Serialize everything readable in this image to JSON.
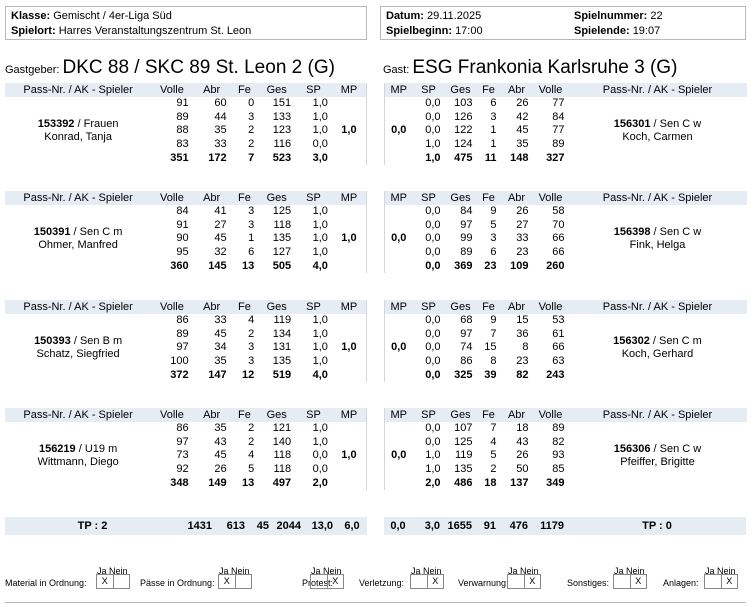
{
  "header": {
    "klasse_label": "Klasse:",
    "klasse": "Gemischt / 4er-Liga Süd",
    "spielort_label": "Spielort:",
    "spielort": "Harres Veranstaltungszentrum St. Leon",
    "datum_label": "Datum:",
    "datum": "29.11.2025",
    "spielnummer_label": "Spielnummer:",
    "spielnummer": "22",
    "spielbeginn_label": "Spielbeginn:",
    "spielbeginn": "17:00",
    "spielende_label": "Spielende:",
    "spielende": "19:07"
  },
  "home": {
    "label": "Gastgeber:",
    "name": "DKC 88 / SKC 89 St. Leon 2 (G)"
  },
  "guest": {
    "label": "Gast:",
    "name": "ESG Frankonia Karlsruhe 3 (G)"
  },
  "columns": {
    "player": "Pass-Nr. / AK - Spieler",
    "volle": "Volle",
    "abr": "Abr",
    "fe": "Fe",
    "ges": "Ges",
    "sp": "SP",
    "mp": "MP"
  },
  "home_players": [
    {
      "pass": "153392",
      "ak": "Frauen",
      "name": "Konrad, Tanja",
      "mp": "1,0",
      "rows": [
        [
          "91",
          "60",
          "0",
          "151",
          "1,0"
        ],
        [
          "89",
          "44",
          "3",
          "133",
          "1,0"
        ],
        [
          "88",
          "35",
          "2",
          "123",
          "1,0"
        ],
        [
          "83",
          "33",
          "2",
          "116",
          "0,0"
        ]
      ],
      "sum": [
        "351",
        "172",
        "7",
        "523",
        "3,0"
      ]
    },
    {
      "pass": "150391",
      "ak": "Sen C m",
      "name": "Ohmer, Manfred",
      "mp": "1,0",
      "rows": [
        [
          "84",
          "41",
          "3",
          "125",
          "1,0"
        ],
        [
          "91",
          "27",
          "3",
          "118",
          "1,0"
        ],
        [
          "90",
          "45",
          "1",
          "135",
          "1,0"
        ],
        [
          "95",
          "32",
          "6",
          "127",
          "1,0"
        ]
      ],
      "sum": [
        "360",
        "145",
        "13",
        "505",
        "4,0"
      ]
    },
    {
      "pass": "150393",
      "ak": "Sen B m",
      "name": "Schatz, Siegfried",
      "mp": "1,0",
      "rows": [
        [
          "86",
          "33",
          "4",
          "119",
          "1,0"
        ],
        [
          "89",
          "45",
          "2",
          "134",
          "1,0"
        ],
        [
          "97",
          "34",
          "3",
          "131",
          "1,0"
        ],
        [
          "100",
          "35",
          "3",
          "135",
          "1,0"
        ]
      ],
      "sum": [
        "372",
        "147",
        "12",
        "519",
        "4,0"
      ]
    },
    {
      "pass": "156219",
      "ak": "U19 m",
      "name": "Wittmann, Diego",
      "mp": "1,0",
      "rows": [
        [
          "86",
          "35",
          "2",
          "121",
          "1,0"
        ],
        [
          "97",
          "43",
          "2",
          "140",
          "1,0"
        ],
        [
          "73",
          "45",
          "4",
          "118",
          "0,0"
        ],
        [
          "92",
          "26",
          "5",
          "118",
          "0,0"
        ]
      ],
      "sum": [
        "348",
        "149",
        "13",
        "497",
        "2,0"
      ]
    }
  ],
  "guest_players": [
    {
      "pass": "156301",
      "ak": "Sen C w",
      "name": "Koch, Carmen",
      "mp": "0,0",
      "rows": [
        [
          "0,0",
          "103",
          "6",
          "26",
          "77"
        ],
        [
          "0,0",
          "126",
          "3",
          "42",
          "84"
        ],
        [
          "0,0",
          "122",
          "1",
          "45",
          "77"
        ],
        [
          "1,0",
          "124",
          "1",
          "35",
          "89"
        ]
      ],
      "sum": [
        "1,0",
        "475",
        "11",
        "148",
        "327"
      ]
    },
    {
      "pass": "156398",
      "ak": "Sen C w",
      "name": "Fink, Helga",
      "mp": "0,0",
      "rows": [
        [
          "0,0",
          "84",
          "9",
          "26",
          "58"
        ],
        [
          "0,0",
          "97",
          "5",
          "27",
          "70"
        ],
        [
          "0,0",
          "99",
          "3",
          "33",
          "66"
        ],
        [
          "0,0",
          "89",
          "6",
          "23",
          "66"
        ]
      ],
      "sum": [
        "0,0",
        "369",
        "23",
        "109",
        "260"
      ]
    },
    {
      "pass": "156302",
      "ak": "Sen C m",
      "name": "Koch, Gerhard",
      "mp": "0,0",
      "rows": [
        [
          "0,0",
          "68",
          "9",
          "15",
          "53"
        ],
        [
          "0,0",
          "97",
          "7",
          "36",
          "61"
        ],
        [
          "0,0",
          "74",
          "15",
          "8",
          "66"
        ],
        [
          "0,0",
          "86",
          "8",
          "23",
          "63"
        ]
      ],
      "sum": [
        "0,0",
        "325",
        "39",
        "82",
        "243"
      ]
    },
    {
      "pass": "156306",
      "ak": "Sen C w",
      "name": "Pfeiffer, Brigitte",
      "mp": "0,0",
      "rows": [
        [
          "0,0",
          "107",
          "7",
          "18",
          "89"
        ],
        [
          "0,0",
          "125",
          "4",
          "43",
          "82"
        ],
        [
          "1,0",
          "119",
          "5",
          "26",
          "93"
        ],
        [
          "1,0",
          "135",
          "2",
          "50",
          "85"
        ]
      ],
      "sum": [
        "2,0",
        "486",
        "18",
        "137",
        "349"
      ]
    }
  ],
  "totals": {
    "home": {
      "tp": "TP : 2",
      "volle": "1431",
      "abr": "613",
      "fe": "45",
      "ges": "2044",
      "sp": "13,0",
      "mp": "6,0"
    },
    "guest": {
      "mp": "0,0",
      "sp": "3,0",
      "ges": "1655",
      "fe": "91",
      "abr": "476",
      "volle": "1179",
      "tp": "TP : 0"
    }
  },
  "checks": {
    "ja_nein": "Ja Nein",
    "items": [
      {
        "label": "Material in Ordnung:",
        "ja": "X",
        "nein": ""
      },
      {
        "label": "Pässe in Ordnung:",
        "ja": "X",
        "nein": ""
      },
      {
        "label": "Protest:",
        "ja": "",
        "nein": "X"
      },
      {
        "label": "Verletzung:",
        "ja": "",
        "nein": "X"
      },
      {
        "label": "Verwarnung:",
        "ja": "",
        "nein": "X"
      },
      {
        "label": "Sonstiges:",
        "ja": "",
        "nein": "X"
      },
      {
        "label": "Anlagen:",
        "ja": "",
        "nein": "X"
      }
    ]
  }
}
